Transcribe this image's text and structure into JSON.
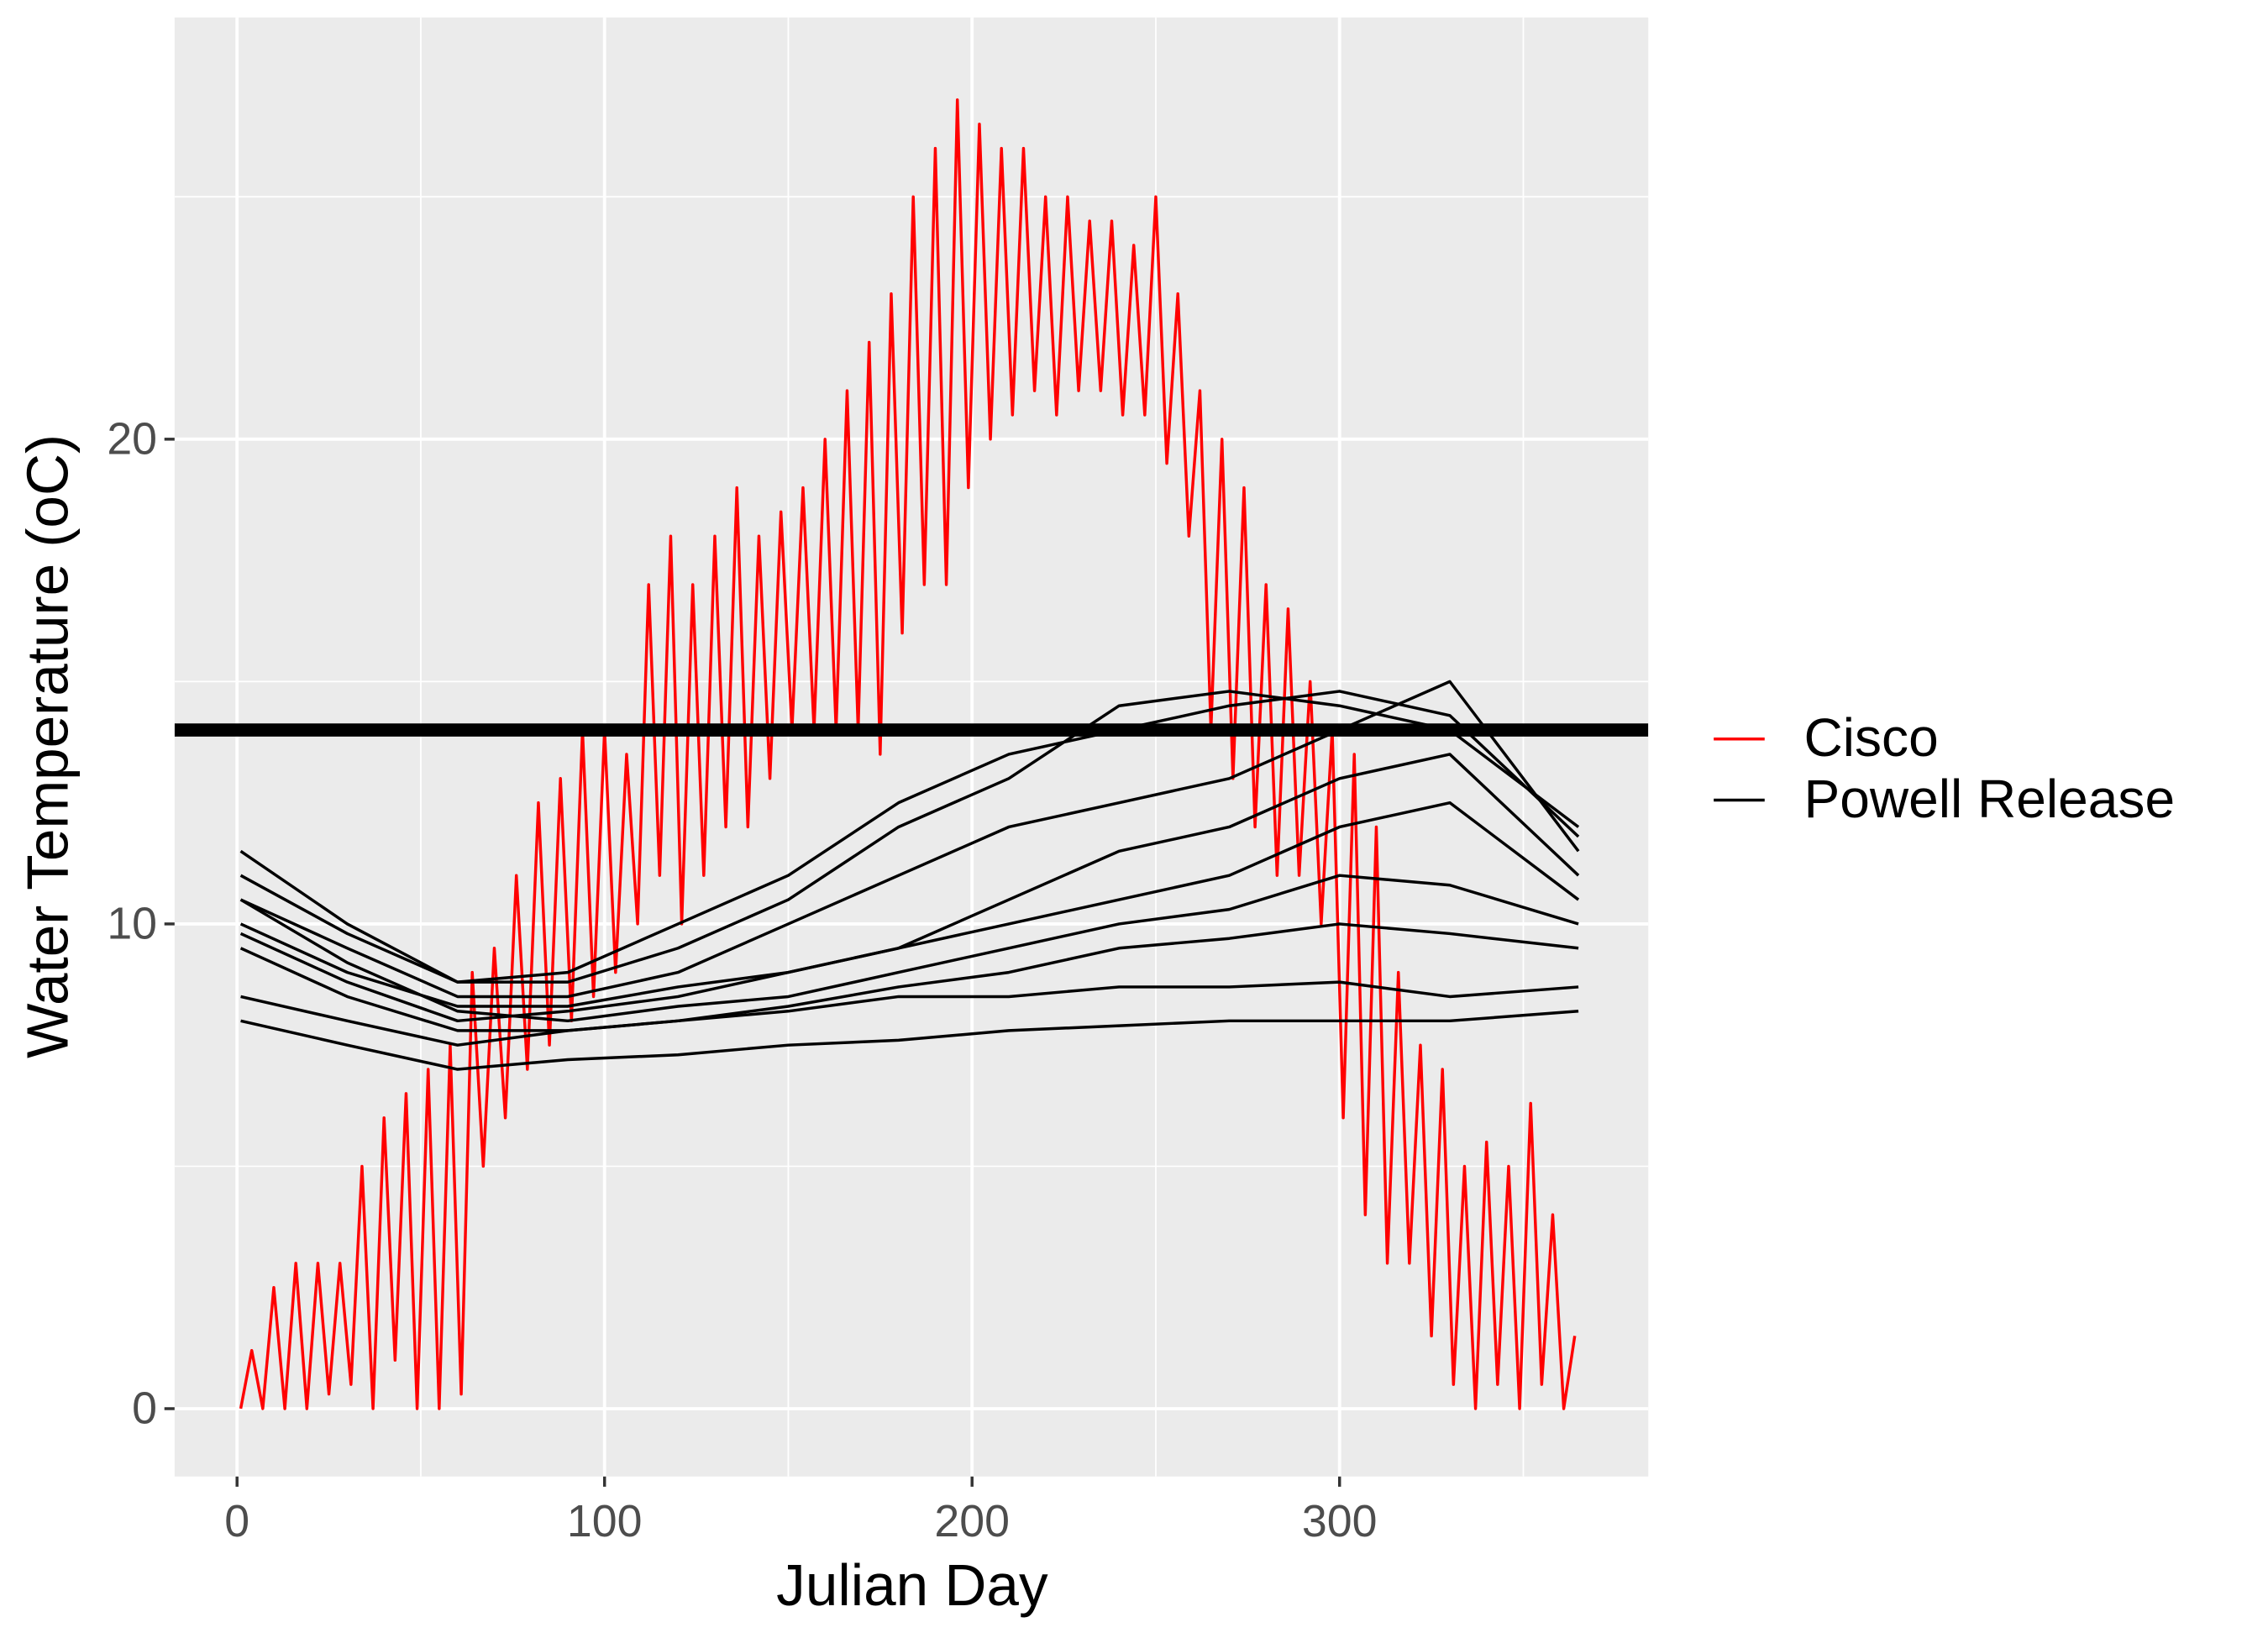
{
  "chart_data": {
    "type": "line",
    "xlabel": "Julian Day",
    "ylabel": "Water Temperature (oC)",
    "xlim": [
      -17,
      384
    ],
    "ylim": [
      -1.4,
      28.7
    ],
    "xticks": [
      0,
      100,
      200,
      300
    ],
    "yticks": [
      0,
      10,
      20
    ],
    "x_minor_grid": [
      50,
      150,
      250,
      350
    ],
    "y_minor_grid": [
      5,
      15,
      25
    ],
    "grid": true,
    "legend": "right",
    "hline": 14,
    "hline_color": "#000000",
    "series": [
      {
        "name": "Cisco",
        "color": "#ff0000",
        "x": [
          1,
          4,
          7,
          10,
          13,
          16,
          19,
          22,
          25,
          28,
          31,
          34,
          37,
          40,
          43,
          46,
          49,
          52,
          55,
          58,
          61,
          64,
          67,
          70,
          73,
          76,
          79,
          82,
          85,
          88,
          91,
          94,
          97,
          100,
          103,
          106,
          109,
          112,
          115,
          118,
          121,
          124,
          127,
          130,
          133,
          136,
          139,
          142,
          145,
          148,
          151,
          154,
          157,
          160,
          163,
          166,
          169,
          172,
          175,
          178,
          181,
          184,
          187,
          190,
          193,
          196,
          199,
          202,
          205,
          208,
          211,
          214,
          217,
          220,
          223,
          226,
          229,
          232,
          235,
          238,
          241,
          244,
          247,
          250,
          253,
          256,
          259,
          262,
          265,
          268,
          271,
          274,
          277,
          280,
          283,
          286,
          289,
          292,
          295,
          298,
          301,
          304,
          307,
          310,
          313,
          316,
          319,
          322,
          325,
          328,
          331,
          334,
          337,
          340,
          343,
          346,
          349,
          352,
          355,
          358,
          361,
          364
        ],
        "values": [
          0,
          1.2,
          0,
          2.5,
          0,
          3,
          0,
          3,
          0.3,
          3,
          0.5,
          5,
          0,
          6,
          1,
          6.5,
          0,
          7,
          0,
          7.5,
          0.3,
          9,
          5,
          9.5,
          6,
          11,
          7,
          12.5,
          7.5,
          13,
          8,
          14,
          8.5,
          14,
          9,
          13.5,
          10,
          17,
          11,
          18,
          10,
          17,
          11,
          18,
          12,
          19,
          12,
          18,
          13,
          18.5,
          14,
          19,
          14,
          20,
          14,
          21,
          14,
          22,
          13.5,
          23,
          16,
          25,
          17,
          26,
          17,
          27,
          19,
          26.5,
          20,
          26,
          20.5,
          26,
          21,
          25,
          20.5,
          25,
          21,
          24.5,
          21,
          24.5,
          20.5,
          24,
          20.5,
          25,
          19.5,
          23,
          18,
          21,
          14,
          20,
          13,
          19,
          12,
          17,
          11,
          16.5,
          11,
          15,
          10,
          14,
          6,
          13.5,
          4,
          12,
          3,
          9,
          3,
          7.5,
          1.5,
          7,
          0.5,
          5,
          0,
          5.5,
          0.5,
          5,
          0,
          6.3,
          0.5,
          4,
          0,
          1.5
        ]
      },
      {
        "name": "Powell Release",
        "color": "#000000",
        "x": [
          1,
          30,
          60,
          90,
          120,
          150,
          180,
          210,
          240,
          270,
          300,
          330,
          365
        ],
        "values": [
          11.5,
          10,
          8.8,
          8.8,
          9.5,
          10.5,
          12,
          13,
          14.5,
          14.8,
          14.5,
          14,
          12
        ]
      },
      {
        "name": "Powell Release",
        "color": "#000000",
        "x": [
          1,
          30,
          60,
          90,
          120,
          150,
          180,
          210,
          240,
          270,
          300,
          330,
          365
        ],
        "values": [
          10.5,
          9.5,
          8.5,
          8.5,
          9,
          10,
          11,
          12,
          12.5,
          13,
          14,
          15,
          11.5
        ]
      },
      {
        "name": "Powell Release",
        "color": "#000000",
        "x": [
          1,
          30,
          60,
          90,
          120,
          150,
          180,
          210,
          240,
          270,
          300,
          330,
          365
        ],
        "values": [
          10,
          9,
          8.3,
          8.3,
          8.7,
          9,
          9.5,
          10.5,
          11.5,
          12,
          13,
          13.5,
          11
        ]
      },
      {
        "name": "Powell Release",
        "color": "#000000",
        "x": [
          1,
          30,
          60,
          90,
          120,
          150,
          180,
          210,
          240,
          270,
          300,
          330,
          365
        ],
        "values": [
          9.8,
          8.8,
          8,
          8.2,
          8.5,
          9,
          9.5,
          10,
          10.5,
          11,
          12,
          12.5,
          10.5
        ]
      },
      {
        "name": "Powell Release",
        "color": "#000000",
        "x": [
          1,
          30,
          60,
          90,
          120,
          150,
          180,
          210,
          240,
          270,
          300,
          330,
          365
        ],
        "values": [
          10.5,
          9.2,
          8.2,
          8,
          8.3,
          8.5,
          9,
          9.5,
          10,
          10.3,
          11,
          10.8,
          10
        ]
      },
      {
        "name": "Powell Release",
        "color": "#000000",
        "x": [
          1,
          30,
          60,
          90,
          120,
          150,
          180,
          210,
          240,
          270,
          300,
          330,
          365
        ],
        "values": [
          9.5,
          8.5,
          7.8,
          7.8,
          8,
          8.3,
          8.7,
          9,
          9.5,
          9.7,
          10,
          9.8,
          9.5
        ]
      },
      {
        "name": "Powell Release",
        "color": "#000000",
        "x": [
          1,
          30,
          60,
          90,
          120,
          150,
          180,
          210,
          240,
          270,
          300,
          330,
          365
        ],
        "values": [
          8.5,
          8,
          7.5,
          7.8,
          8,
          8.2,
          8.5,
          8.5,
          8.7,
          8.7,
          8.8,
          8.5,
          8.7
        ]
      },
      {
        "name": "Powell Release",
        "color": "#000000",
        "x": [
          1,
          30,
          60,
          90,
          120,
          150,
          180,
          210,
          240,
          270,
          300,
          330,
          365
        ],
        "values": [
          8,
          7.5,
          7,
          7.2,
          7.3,
          7.5,
          7.6,
          7.8,
          7.9,
          8,
          8,
          8,
          8.2
        ]
      },
      {
        "name": "Powell Release",
        "color": "#000000",
        "x": [
          1,
          30,
          60,
          90,
          120,
          150,
          180,
          210,
          240,
          270,
          300,
          330,
          365
        ],
        "values": [
          11,
          9.8,
          8.8,
          9,
          10,
          11,
          12.5,
          13.5,
          14,
          14.5,
          14.8,
          14.3,
          11.8
        ]
      }
    ]
  }
}
